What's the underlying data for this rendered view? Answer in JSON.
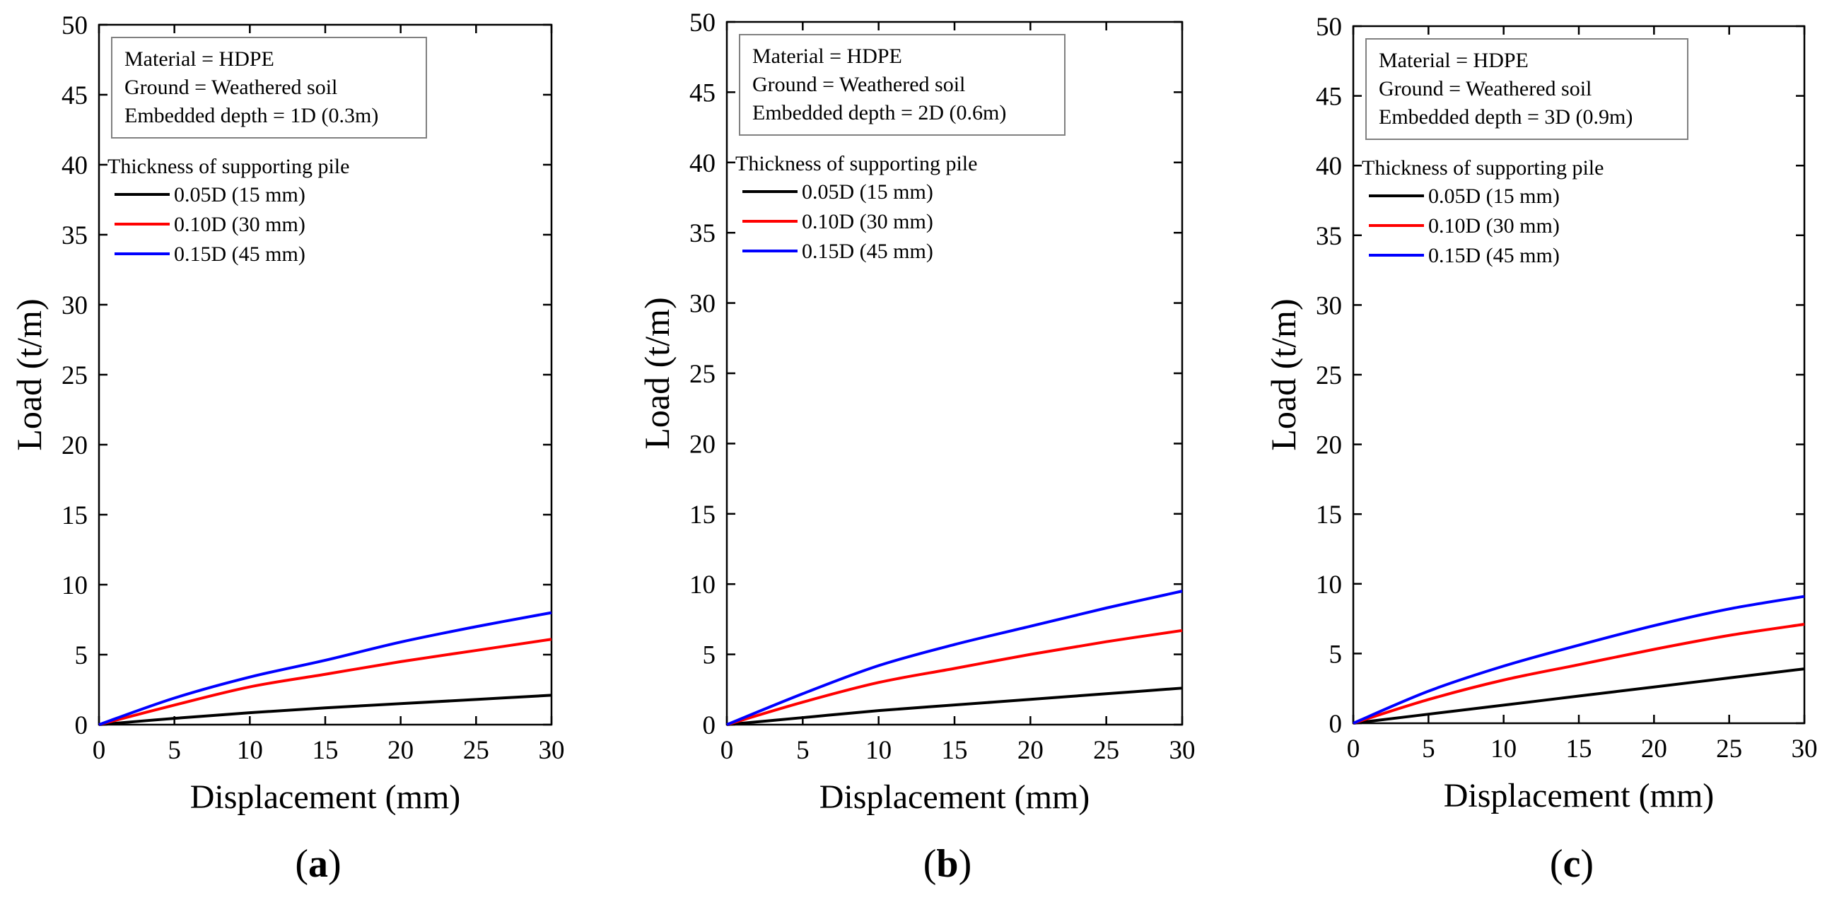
{
  "colors": {
    "black": "#000000",
    "red": "#ff0000",
    "blue": "#0000ff",
    "box": "#808080"
  },
  "chart_data": [
    {
      "type": "line",
      "panel_label": "a",
      "xlabel": "Displacement (mm)",
      "ylabel": "Load (t/m)",
      "xlim": [
        0,
        30
      ],
      "ylim": [
        0,
        50
      ],
      "xticks": [
        0,
        5,
        10,
        15,
        20,
        25,
        30
      ],
      "yticks": [
        0,
        5,
        10,
        15,
        20,
        25,
        30,
        35,
        40,
        45,
        50
      ],
      "info_lines": [
        "Material = HDPE",
        "Ground = Weathered soil",
        "Embedded depth = 1D (0.3m)"
      ],
      "legend_title": "Thickness of supporting pile",
      "legend_placement": "top-left",
      "x": [
        0,
        5,
        10,
        15,
        20,
        25,
        30
      ],
      "series": [
        {
          "name": "0.05D (15 mm)",
          "color": "#000000",
          "values": [
            0,
            0.45,
            0.85,
            1.2,
            1.5,
            1.8,
            2.1
          ]
        },
        {
          "name": "0.10D (30 mm)",
          "color": "#ff0000",
          "values": [
            0,
            1.4,
            2.7,
            3.6,
            4.5,
            5.3,
            6.1
          ]
        },
        {
          "name": "0.15D (45 mm)",
          "color": "#0000ff",
          "values": [
            0,
            1.9,
            3.4,
            4.6,
            5.9,
            7.0,
            8.0
          ]
        }
      ]
    },
    {
      "type": "line",
      "panel_label": "b",
      "xlabel": "Displacement (mm)",
      "ylabel": "Load (t/m)",
      "xlim": [
        0,
        30
      ],
      "ylim": [
        0,
        50
      ],
      "xticks": [
        0,
        5,
        10,
        15,
        20,
        25,
        30
      ],
      "yticks": [
        0,
        5,
        10,
        15,
        20,
        25,
        30,
        35,
        40,
        45,
        50
      ],
      "info_lines": [
        "Material = HDPE",
        "Ground = Weathered soil",
        "Embedded depth = 2D (0.6m)"
      ],
      "legend_title": "Thickness of supporting pile",
      "legend_placement": "top-left",
      "x": [
        0,
        5,
        10,
        15,
        20,
        25,
        30
      ],
      "series": [
        {
          "name": "0.05D (15 mm)",
          "color": "#000000",
          "values": [
            0,
            0.5,
            1.0,
            1.4,
            1.8,
            2.2,
            2.6
          ]
        },
        {
          "name": "0.10D (30 mm)",
          "color": "#ff0000",
          "values": [
            0,
            1.6,
            3.0,
            4.0,
            5.0,
            5.9,
            6.7
          ]
        },
        {
          "name": "0.15D (45 mm)",
          "color": "#0000ff",
          "values": [
            0,
            2.2,
            4.2,
            5.7,
            7.0,
            8.3,
            9.5
          ]
        }
      ]
    },
    {
      "type": "line",
      "panel_label": "c",
      "xlabel": "Displacement (mm)",
      "ylabel": "Load (t/m)",
      "xlim": [
        0,
        30
      ],
      "ylim": [
        0,
        50
      ],
      "xticks": [
        0,
        5,
        10,
        15,
        20,
        25,
        30
      ],
      "yticks": [
        0,
        5,
        10,
        15,
        20,
        25,
        30,
        35,
        40,
        45,
        50
      ],
      "info_lines": [
        "Material = HDPE",
        "Ground = Weathered soil",
        "Embedded depth = 3D (0.9m)"
      ],
      "legend_title": "Thickness of supporting pile",
      "legend_placement": "top-left",
      "x": [
        0,
        5,
        10,
        15,
        20,
        25,
        30
      ],
      "series": [
        {
          "name": "0.05D (15 mm)",
          "color": "#000000",
          "values": [
            0,
            0.65,
            1.3,
            1.95,
            2.6,
            3.25,
            3.9
          ]
        },
        {
          "name": "0.10D (30 mm)",
          "color": "#ff0000",
          "values": [
            0,
            1.7,
            3.1,
            4.2,
            5.3,
            6.3,
            7.1
          ]
        },
        {
          "name": "0.15D (45 mm)",
          "color": "#0000ff",
          "values": [
            0,
            2.3,
            4.1,
            5.6,
            7.0,
            8.2,
            9.1
          ]
        }
      ]
    }
  ]
}
